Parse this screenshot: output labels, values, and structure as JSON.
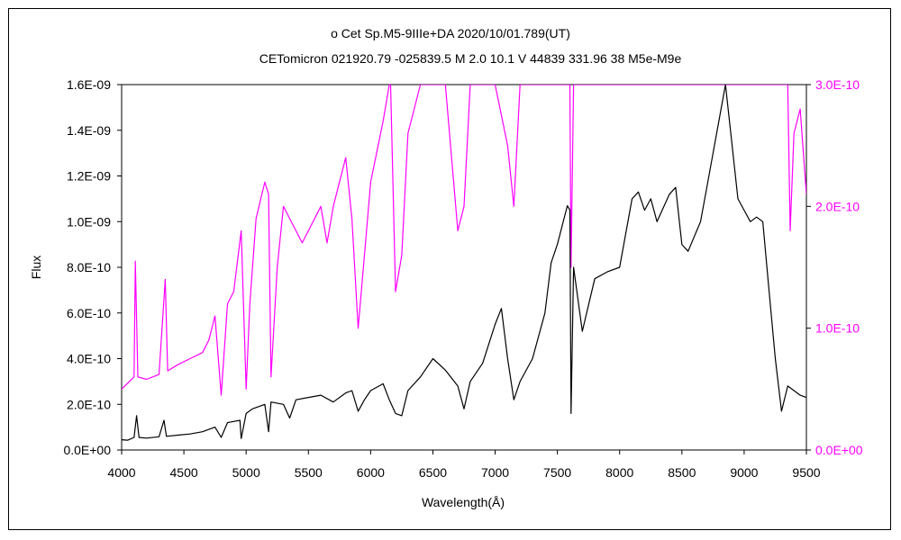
{
  "chart_data": {
    "type": "line",
    "title": "ο Cet    Sp.M5-9IIIe+DA    2020/10/01.789(UT)",
    "subtitle": "CETomicron 021920.79 -025839.5 M 2.0 10.1  V 44839 331.96 38 M5e-M9e",
    "xlabel": "Wavelength(Å)",
    "ylabel": "Flux",
    "xlim": [
      4000,
      9500
    ],
    "ylim": [
      0,
      1.6e-09
    ],
    "y2lim": [
      0,
      3e-10
    ],
    "grid": false,
    "x_ticks": [
      "4000",
      "4500",
      "5000",
      "5500",
      "6000",
      "6500",
      "7000",
      "7500",
      "8000",
      "8500",
      "9000",
      "9500"
    ],
    "y_ticks": [
      "0.0E+00",
      "2.0E-10",
      "4.0E-10",
      "6.0E-10",
      "8.0E-10",
      "1.0E-09",
      "1.2E-09",
      "1.4E-09",
      "1.6E-09"
    ],
    "y2_ticks": [
      "0.0E+00",
      "1.0E-10",
      "2.0E-10",
      "3.0E-10"
    ],
    "colors": {
      "primary": "#000000",
      "secondary": "#ff00ff"
    },
    "series": [
      {
        "axis": "left",
        "color": "#000000",
        "points": [
          [
            4000,
            4.5e-11
          ],
          [
            4050,
            4.3e-11
          ],
          [
            4100,
            5.5e-11
          ],
          [
            4120,
            1.5e-10
          ],
          [
            4140,
            5.5e-11
          ],
          [
            4200,
            5.2e-11
          ],
          [
            4300,
            5.8e-11
          ],
          [
            4340,
            1.3e-10
          ],
          [
            4360,
            6e-11
          ],
          [
            4450,
            6.5e-11
          ],
          [
            4550,
            7e-11
          ],
          [
            4650,
            8e-11
          ],
          [
            4750,
            1e-10
          ],
          [
            4800,
            5.5e-11
          ],
          [
            4850,
            1.2e-10
          ],
          [
            4950,
            1.3e-10
          ],
          [
            4960,
            5e-11
          ],
          [
            5000,
            1.6e-10
          ],
          [
            5050,
            1.8e-10
          ],
          [
            5100,
            1.9e-10
          ],
          [
            5150,
            2e-10
          ],
          [
            5180,
            8e-11
          ],
          [
            5200,
            2.1e-10
          ],
          [
            5300,
            2e-10
          ],
          [
            5350,
            1.4e-10
          ],
          [
            5400,
            2.2e-10
          ],
          [
            5500,
            2.3e-10
          ],
          [
            5600,
            2.4e-10
          ],
          [
            5700,
            2.1e-10
          ],
          [
            5800,
            2.5e-10
          ],
          [
            5850,
            2.6e-10
          ],
          [
            5900,
            1.7e-10
          ],
          [
            5950,
            2.2e-10
          ],
          [
            6000,
            2.6e-10
          ],
          [
            6100,
            2.9e-10
          ],
          [
            6150,
            2.2e-10
          ],
          [
            6200,
            1.6e-10
          ],
          [
            6250,
            1.5e-10
          ],
          [
            6300,
            2.6e-10
          ],
          [
            6400,
            3.2e-10
          ],
          [
            6500,
            4e-10
          ],
          [
            6600,
            3.5e-10
          ],
          [
            6700,
            2.8e-10
          ],
          [
            6750,
            1.8e-10
          ],
          [
            6800,
            3e-10
          ],
          [
            6900,
            3.8e-10
          ],
          [
            7000,
            5.5e-10
          ],
          [
            7050,
            6.2e-10
          ],
          [
            7100,
            4e-10
          ],
          [
            7150,
            2.2e-10
          ],
          [
            7200,
            3e-10
          ],
          [
            7300,
            4e-10
          ],
          [
            7400,
            6e-10
          ],
          [
            7450,
            8.2e-10
          ],
          [
            7500,
            9e-10
          ],
          [
            7580,
            1.07e-09
          ],
          [
            7600,
            1.05e-09
          ],
          [
            7610,
            1.6e-10
          ],
          [
            7630,
            8e-10
          ],
          [
            7700,
            5.2e-10
          ],
          [
            7800,
            7.5e-10
          ],
          [
            7900,
            7.8e-10
          ],
          [
            8000,
            8e-10
          ],
          [
            8100,
            1.1e-09
          ],
          [
            8150,
            1.13e-09
          ],
          [
            8200,
            1.05e-09
          ],
          [
            8250,
            1.1e-09
          ],
          [
            8300,
            1e-09
          ],
          [
            8400,
            1.12e-09
          ],
          [
            8450,
            1.15e-09
          ],
          [
            8500,
            9e-10
          ],
          [
            8550,
            8.7e-10
          ],
          [
            8650,
            1e-09
          ],
          [
            8700,
            1.15e-09
          ],
          [
            8800,
            1.45e-09
          ],
          [
            8850,
            1.6e-09
          ],
          [
            8900,
            1.35e-09
          ],
          [
            8950,
            1.1e-09
          ],
          [
            9000,
            1.05e-09
          ],
          [
            9050,
            1e-09
          ],
          [
            9100,
            1.02e-09
          ],
          [
            9150,
            1e-09
          ],
          [
            9200,
            7e-10
          ],
          [
            9250,
            4e-10
          ],
          [
            9300,
            1.7e-10
          ],
          [
            9350,
            2.8e-10
          ],
          [
            9400,
            2.6e-10
          ],
          [
            9450,
            2.4e-10
          ],
          [
            9500,
            2.3e-10
          ]
        ]
      },
      {
        "axis": "right",
        "color": "#ff00ff",
        "points": [
          [
            4000,
            5e-11
          ],
          [
            4050,
            5.5e-11
          ],
          [
            4100,
            6e-11
          ],
          [
            4110,
            1.55e-10
          ],
          [
            4130,
            6e-11
          ],
          [
            4200,
            5.8e-11
          ],
          [
            4300,
            6.2e-11
          ],
          [
            4350,
            1.4e-10
          ],
          [
            4370,
            6.5e-11
          ],
          [
            4450,
            7e-11
          ],
          [
            4550,
            7.5e-11
          ],
          [
            4650,
            8e-11
          ],
          [
            4700,
            9e-11
          ],
          [
            4750,
            1.1e-10
          ],
          [
            4800,
            4.5e-11
          ],
          [
            4850,
            1.2e-10
          ],
          [
            4900,
            1.3e-10
          ],
          [
            4960,
            1.8e-10
          ],
          [
            5000,
            5e-11
          ],
          [
            5030,
            1.2e-10
          ],
          [
            5080,
            1.9e-10
          ],
          [
            5150,
            2.2e-10
          ],
          [
            5180,
            2.1e-10
          ],
          [
            5200,
            6e-11
          ],
          [
            5250,
            1.5e-10
          ],
          [
            5300,
            2e-10
          ],
          [
            5350,
            1.9e-10
          ],
          [
            5400,
            1.8e-10
          ],
          [
            5450,
            1.7e-10
          ],
          [
            5500,
            1.8e-10
          ],
          [
            5600,
            2e-10
          ],
          [
            5650,
            1.7e-10
          ],
          [
            5700,
            2e-10
          ],
          [
            5750,
            2.2e-10
          ],
          [
            5800,
            2.4e-10
          ],
          [
            5850,
            1.9e-10
          ],
          [
            5900,
            1e-10
          ],
          [
            5950,
            1.6e-10
          ],
          [
            6000,
            2.2e-10
          ],
          [
            6100,
            2.7e-10
          ],
          [
            6150,
            3e-10
          ],
          [
            6160,
            3e-10
          ],
          [
            6200,
            1.3e-10
          ],
          [
            6250,
            1.6e-10
          ],
          [
            6300,
            2.6e-10
          ],
          [
            6350,
            2.8e-10
          ],
          [
            6400,
            3e-10
          ],
          [
            6600,
            3e-10
          ],
          [
            6700,
            1.8e-10
          ],
          [
            6750,
            2e-10
          ],
          [
            6800,
            3e-10
          ],
          [
            7000,
            3e-10
          ],
          [
            7100,
            2.5e-10
          ],
          [
            7150,
            2e-10
          ],
          [
            7200,
            3e-10
          ],
          [
            7600,
            3e-10
          ],
          [
            7610,
            1.5e-10
          ],
          [
            7630,
            3e-10
          ],
          [
            9350,
            3e-10
          ],
          [
            9370,
            1.8e-10
          ],
          [
            9400,
            2.6e-10
          ],
          [
            9450,
            2.8e-10
          ],
          [
            9500,
            2.1e-10
          ]
        ]
      }
    ]
  }
}
